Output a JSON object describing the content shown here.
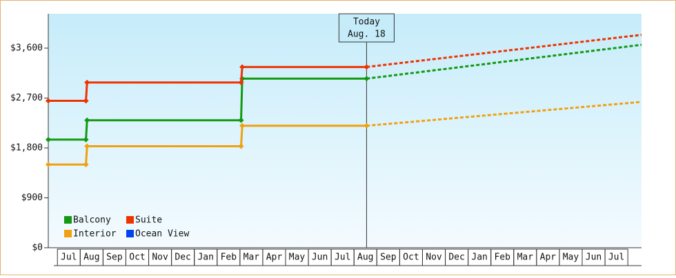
{
  "chart_data": {
    "type": "step-line",
    "categories": [
      "Jul",
      "Aug",
      "Sep",
      "Oct",
      "Nov",
      "Dec",
      "Jan",
      "Feb",
      "Mar",
      "Apr",
      "May",
      "Jun",
      "Jul",
      "Aug",
      "Sep",
      "Oct",
      "Nov",
      "Dec",
      "Jan",
      "Feb",
      "Mar",
      "Apr",
      "May",
      "Jun",
      "Jul"
    ],
    "xlim": [
      -0.4,
      25.6
    ],
    "ylim": [
      0,
      4220
    ],
    "yticks": [
      {
        "value": 0,
        "label": "$0"
      },
      {
        "value": 900,
        "label": "$900"
      },
      {
        "value": 1800,
        "label": "$1,800"
      },
      {
        "value": 2700,
        "label": "$2,700"
      },
      {
        "value": 3600,
        "label": "$3,600"
      }
    ],
    "annotation": {
      "x": 13.55,
      "lines": [
        "Today",
        "Aug. 18"
      ]
    },
    "series": [
      {
        "name": "Balcony",
        "color": "#119911",
        "x": [
          -0.4,
          1.25,
          1.3,
          8.05,
          8.1,
          13.55
        ],
        "values": [
          1950,
          1950,
          2300,
          2300,
          3050,
          3050
        ],
        "forecast_x": [
          13.55,
          25.6
        ],
        "forecast_values": [
          3050,
          3660
        ]
      },
      {
        "name": "Suite",
        "color": "#ee3300",
        "x": [
          -0.4,
          1.25,
          1.3,
          8.05,
          8.1,
          13.55
        ],
        "values": [
          2650,
          2650,
          2980,
          2980,
          3260,
          3260
        ],
        "forecast_x": [
          13.55,
          25.6
        ],
        "forecast_values": [
          3260,
          3840
        ]
      },
      {
        "name": "Interior",
        "color": "#f0a010",
        "x": [
          -0.4,
          1.25,
          1.3,
          8.05,
          8.1,
          13.55
        ],
        "values": [
          1500,
          1500,
          1830,
          1830,
          2200,
          2200
        ],
        "forecast_x": [
          13.55,
          25.6
        ],
        "forecast_values": [
          2200,
          2630
        ]
      },
      {
        "name": "Ocean View",
        "color": "#0044ee",
        "x": [],
        "values": [],
        "forecast_x": [],
        "forecast_values": []
      }
    ]
  }
}
